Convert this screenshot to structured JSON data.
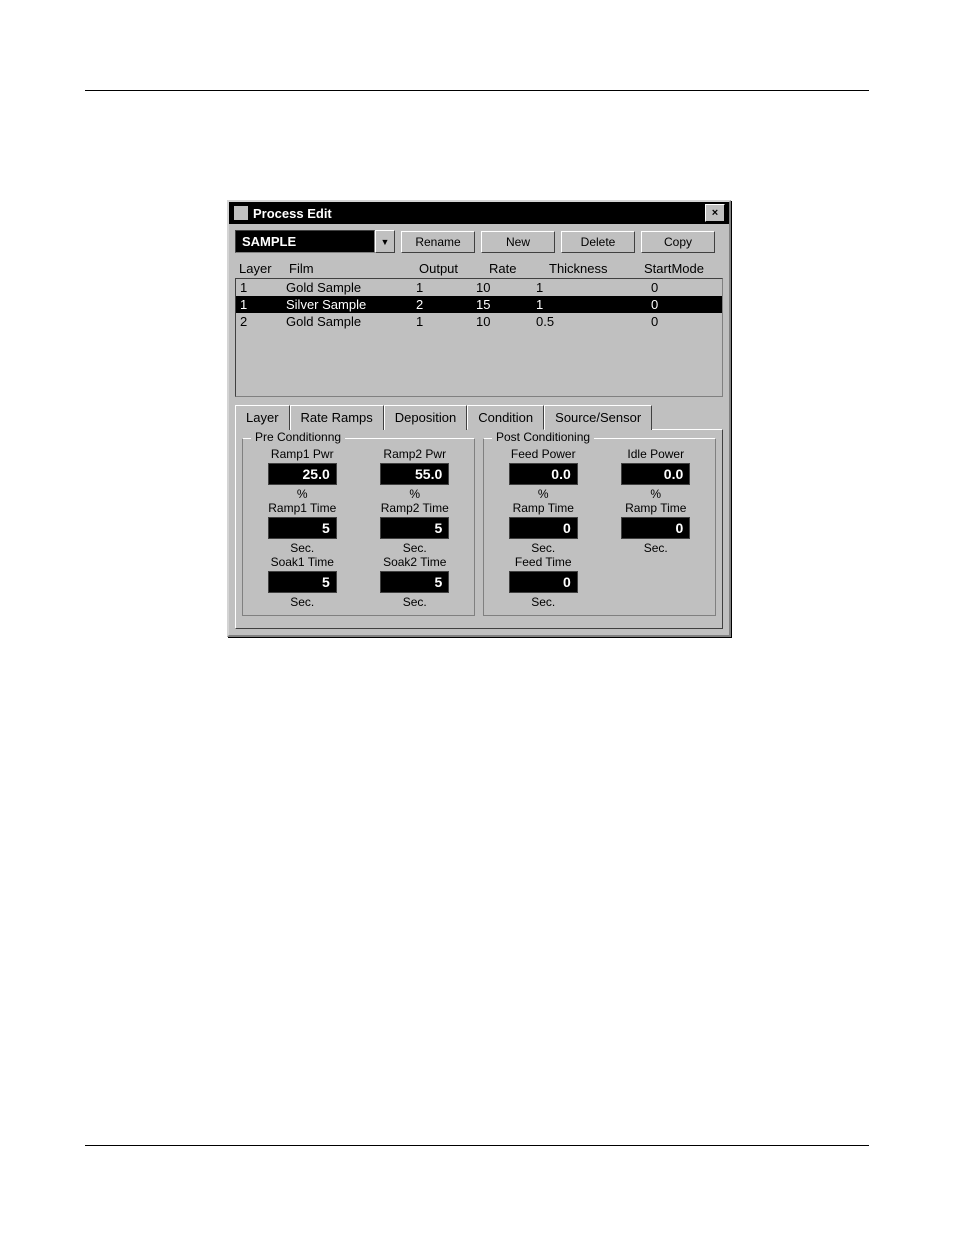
{
  "window": {
    "title": "Process Edit",
    "close": "×",
    "process_name": "SAMPLE",
    "buttons": {
      "rename": "Rename",
      "new": "New",
      "delete": "Delete",
      "copy": "Copy"
    }
  },
  "table": {
    "headers": {
      "layer": "Layer",
      "film": "Film",
      "output": "Output",
      "rate": "Rate",
      "thickness": "Thickness",
      "startmode": "StartMode"
    },
    "rows": [
      {
        "layer": "1",
        "film": "Gold Sample",
        "output": "1",
        "rate": "10",
        "thickness": "1",
        "startmode": "0",
        "selected": false
      },
      {
        "layer": "1",
        "film": "Silver Sample",
        "output": "2",
        "rate": "15",
        "thickness": "1",
        "startmode": "0",
        "selected": true
      },
      {
        "layer": "2",
        "film": "Gold Sample",
        "output": "1",
        "rate": "10",
        "thickness": "0.5",
        "startmode": "0",
        "selected": false
      }
    ]
  },
  "tabs": {
    "layer": "Layer",
    "rateramps": "Rate Ramps",
    "deposition": "Deposition",
    "condition": "Condition",
    "sourcesensor": "Source/Sensor",
    "active": "condition"
  },
  "pre": {
    "title": "Pre Conditionng",
    "ramp1pwr": {
      "label": "Ramp1 Pwr",
      "value": "25.0",
      "unit": "%"
    },
    "ramp2pwr": {
      "label": "Ramp2 Pwr",
      "value": "55.0",
      "unit": "%"
    },
    "ramp1time": {
      "label": "Ramp1 Time",
      "value": "5",
      "unit": "Sec."
    },
    "ramp2time": {
      "label": "Ramp2 Time",
      "value": "5",
      "unit": "Sec."
    },
    "soak1time": {
      "label": "Soak1 Time",
      "value": "5",
      "unit": "Sec."
    },
    "soak2time": {
      "label": "Soak2 Time",
      "value": "5",
      "unit": "Sec."
    }
  },
  "post": {
    "title": "Post Conditioning",
    "feedpower": {
      "label": "Feed Power",
      "value": "0.0",
      "unit": "%"
    },
    "idlepower": {
      "label": "Idle Power",
      "value": "0.0",
      "unit": "%"
    },
    "ramptime1": {
      "label": "Ramp Time",
      "value": "0",
      "unit": "Sec."
    },
    "ramptime2": {
      "label": "Ramp Time",
      "value": "0",
      "unit": "Sec."
    },
    "feedtime": {
      "label": "Feed Time",
      "value": "0",
      "unit": "Sec."
    }
  }
}
